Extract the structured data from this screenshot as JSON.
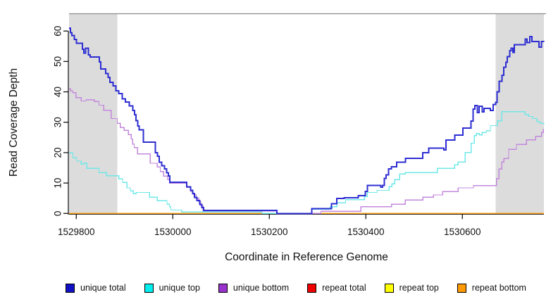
{
  "figure": {
    "xlabel": "Coordinate in Reference Genome",
    "ylabel": "Read Coverage Depth"
  },
  "chart_data": {
    "type": "line",
    "step": true,
    "title": "",
    "xlabel": "Coordinate in Reference Genome",
    "ylabel": "Read Coverage Depth",
    "xlim": [
      1529785,
      1530769
    ],
    "ylim": [
      0,
      65.7
    ],
    "xticks": [
      1529800,
      1530000,
      1530200,
      1530400,
      1530600
    ],
    "yticks": [
      0,
      10,
      20,
      30,
      40,
      50,
      60
    ],
    "grid": false,
    "legend_position": "bottom",
    "shade_color": "#dcdcdc",
    "shaded_regions": [
      {
        "x0": 1529785,
        "x1": 1529885
      },
      {
        "x0": 1530669,
        "x1": 1530769
      }
    ],
    "series": [
      {
        "name": "repeat total",
        "swatch_color": "#ee0000",
        "line_color": "#dd2222",
        "line_width": 1.4,
        "points": [
          [
            1529785,
            0
          ],
          [
            1530769,
            0
          ]
        ]
      },
      {
        "name": "repeat top",
        "swatch_color": "#ffff00",
        "line_color": "#f2e500",
        "line_width": 1.4,
        "points": [
          [
            1529785,
            0
          ],
          [
            1530769,
            0
          ]
        ]
      },
      {
        "name": "repeat bottom",
        "swatch_color": "#ff9900",
        "line_color": "#ffa013",
        "line_width": 1.7,
        "points": [
          [
            1529785,
            0
          ],
          [
            1530769,
            0
          ]
        ]
      },
      {
        "name": "unique bottom",
        "swatch_color": "#9932cc",
        "line_color": "#c388dd",
        "line_width": 1.4,
        "points": [
          [
            1529785,
            41
          ],
          [
            1529788,
            40.3
          ],
          [
            1529793,
            39.7
          ],
          [
            1529799,
            38.1
          ],
          [
            1529810,
            37
          ],
          [
            1529820,
            37.4
          ],
          [
            1529837,
            36.8
          ],
          [
            1529847,
            35.6
          ],
          [
            1529857,
            33.9
          ],
          [
            1529872,
            31.2
          ],
          [
            1529885,
            29.6
          ],
          [
            1529891,
            28.3
          ],
          [
            1529899,
            27.3
          ],
          [
            1529908,
            25.9
          ],
          [
            1529914,
            24.5
          ],
          [
            1529917,
            22.8
          ],
          [
            1529920,
            21.7
          ],
          [
            1529927,
            19.6
          ],
          [
            1529953,
            16.5
          ],
          [
            1529968,
            15.3
          ],
          [
            1529974,
            13.8
          ],
          [
            1529981,
            12.3
          ],
          [
            1529990,
            11.1
          ],
          [
            1529993,
            9.9
          ],
          [
            1530029,
            8.6
          ],
          [
            1530037,
            7.3
          ],
          [
            1530042,
            6.2
          ],
          [
            1530048,
            5
          ],
          [
            1530054,
            3.8
          ],
          [
            1530058,
            2.5
          ],
          [
            1530063,
            0.8
          ],
          [
            1530216,
            0
          ],
          [
            1530307,
            0.7
          ],
          [
            1530390,
            2.2
          ],
          [
            1530453,
            3
          ],
          [
            1530482,
            4.4
          ],
          [
            1530518,
            5.3
          ],
          [
            1530540,
            6.1
          ],
          [
            1530559,
            7.2
          ],
          [
            1530591,
            8.4
          ],
          [
            1530623,
            9.2
          ],
          [
            1530670,
            9.3
          ],
          [
            1530671,
            11.5
          ],
          [
            1530676,
            14.6
          ],
          [
            1530682,
            16.9
          ],
          [
            1530686,
            18.1
          ],
          [
            1530696,
            21.1
          ],
          [
            1530712,
            22.7
          ],
          [
            1530733,
            24.2
          ],
          [
            1530752,
            25.4
          ],
          [
            1530764,
            26.6
          ],
          [
            1530768,
            27.7
          ]
        ]
      },
      {
        "name": "unique top",
        "swatch_color": "#00eeee",
        "line_color": "#6fe8e8",
        "line_width": 1.4,
        "points": [
          [
            1529785,
            19.9
          ],
          [
            1529793,
            18.3
          ],
          [
            1529801,
            17.2
          ],
          [
            1529810,
            16.2
          ],
          [
            1529815,
            16.6
          ],
          [
            1529822,
            14.8
          ],
          [
            1529847,
            13.4
          ],
          [
            1529863,
            12.4
          ],
          [
            1529888,
            11.4
          ],
          [
            1529896,
            10.2
          ],
          [
            1529905,
            8.4
          ],
          [
            1529912,
            7.4
          ],
          [
            1529918,
            6.5
          ],
          [
            1529924,
            6.9
          ],
          [
            1529952,
            5.3
          ],
          [
            1529968,
            4.2
          ],
          [
            1529988,
            3
          ],
          [
            1529993,
            2.2
          ],
          [
            1529996,
            1.1
          ],
          [
            1530018,
            0.5
          ],
          [
            1530185,
            0
          ],
          [
            1530288,
            1.4
          ],
          [
            1530326,
            2.2
          ],
          [
            1530340,
            3.5
          ],
          [
            1530358,
            4.5
          ],
          [
            1530397,
            5.6
          ],
          [
            1530403,
            6.9
          ],
          [
            1530423,
            7.6
          ],
          [
            1530448,
            8.8
          ],
          [
            1530454,
            9.7
          ],
          [
            1530460,
            11.1
          ],
          [
            1530470,
            13
          ],
          [
            1530482,
            13.4
          ],
          [
            1530548,
            14.8
          ],
          [
            1530584,
            16
          ],
          [
            1530591,
            16.9
          ],
          [
            1530606,
            20
          ],
          [
            1530618,
            23.1
          ],
          [
            1530625,
            25.6
          ],
          [
            1530629,
            26.3
          ],
          [
            1530635,
            25.8
          ],
          [
            1530641,
            26.6
          ],
          [
            1530650,
            27.2
          ],
          [
            1530658,
            28.9
          ],
          [
            1530673,
            30.5
          ],
          [
            1530682,
            33.5
          ],
          [
            1530730,
            32.5
          ],
          [
            1530737,
            31.9
          ],
          [
            1530746,
            31.2
          ],
          [
            1530755,
            30.2
          ],
          [
            1530761,
            29.6
          ],
          [
            1530769,
            29.4
          ]
        ]
      },
      {
        "name": "unique total",
        "swatch_color": "#1111c4",
        "line_color": "#2d2dd2",
        "line_width": 2,
        "points": [
          [
            1529785,
            61
          ],
          [
            1529788,
            59.5
          ],
          [
            1529791,
            58.5
          ],
          [
            1529796,
            57.3
          ],
          [
            1529800,
            56
          ],
          [
            1529813,
            54
          ],
          [
            1529816,
            52.7
          ],
          [
            1529819,
            54.3
          ],
          [
            1529825,
            52.2
          ],
          [
            1529829,
            51.5
          ],
          [
            1529848,
            49.8
          ],
          [
            1529851,
            47.5
          ],
          [
            1529861,
            46
          ],
          [
            1529866,
            44.7
          ],
          [
            1529870,
            43.1
          ],
          [
            1529876,
            42
          ],
          [
            1529882,
            40.4
          ],
          [
            1529888,
            39.4
          ],
          [
            1529895,
            37.7
          ],
          [
            1529902,
            36.6
          ],
          [
            1529910,
            35.4
          ],
          [
            1529917,
            33.9
          ],
          [
            1529921,
            32.5
          ],
          [
            1529924,
            30.5
          ],
          [
            1529927,
            28.8
          ],
          [
            1529930,
            27.5
          ],
          [
            1529939,
            23.4
          ],
          [
            1529964,
            20
          ],
          [
            1529968,
            18.8
          ],
          [
            1529972,
            16.9
          ],
          [
            1529977,
            15.7
          ],
          [
            1529983,
            14.6
          ],
          [
            1529987,
            13.4
          ],
          [
            1529991,
            12.3
          ],
          [
            1529994,
            10.2
          ],
          [
            1530029,
            8.8
          ],
          [
            1530037,
            7.6
          ],
          [
            1530041,
            6.5
          ],
          [
            1530045,
            5.3
          ],
          [
            1530050,
            4.2
          ],
          [
            1530056,
            3
          ],
          [
            1530060,
            1.9
          ],
          [
            1530064,
            1
          ],
          [
            1530216,
            0
          ],
          [
            1530288,
            1.6
          ],
          [
            1530329,
            3.2
          ],
          [
            1530340,
            4.9
          ],
          [
            1530355,
            5.2
          ],
          [
            1530384,
            5.9
          ],
          [
            1530399,
            7.2
          ],
          [
            1530403,
            9.2
          ],
          [
            1530431,
            8.6
          ],
          [
            1530435,
            9.2
          ],
          [
            1530438,
            11.5
          ],
          [
            1530442,
            12.7
          ],
          [
            1530447,
            14.6
          ],
          [
            1530453,
            15.3
          ],
          [
            1530464,
            16.9
          ],
          [
            1530482,
            18.1
          ],
          [
            1530518,
            20
          ],
          [
            1530530,
            21.5
          ],
          [
            1530562,
            20.9
          ],
          [
            1530566,
            24.2
          ],
          [
            1530584,
            25.8
          ],
          [
            1530601,
            28.1
          ],
          [
            1530618,
            30.4
          ],
          [
            1530622,
            34.3
          ],
          [
            1530626,
            35.5
          ],
          [
            1530631,
            33.2
          ],
          [
            1530635,
            35.2
          ],
          [
            1530641,
            33.4
          ],
          [
            1530645,
            34.6
          ],
          [
            1530658,
            33.9
          ],
          [
            1530664,
            35.8
          ],
          [
            1530669,
            36.5
          ],
          [
            1530672,
            40
          ],
          [
            1530676,
            43.5
          ],
          [
            1530682,
            45.4
          ],
          [
            1530686,
            48.1
          ],
          [
            1530690,
            49.7
          ],
          [
            1530693,
            51.6
          ],
          [
            1530698,
            53.5
          ],
          [
            1530701,
            54.3
          ],
          [
            1530705,
            53
          ],
          [
            1530708,
            55.5
          ],
          [
            1530724,
            55.5
          ],
          [
            1530730,
            57.4
          ],
          [
            1530734,
            56.2
          ],
          [
            1530740,
            58.2
          ],
          [
            1530744,
            56.6
          ],
          [
            1530759,
            54.7
          ],
          [
            1530764,
            56.6
          ],
          [
            1530769,
            56.5
          ]
        ]
      }
    ],
    "legend_order": [
      "unique total",
      "unique top",
      "unique bottom",
      "repeat total",
      "repeat top",
      "repeat bottom"
    ]
  }
}
